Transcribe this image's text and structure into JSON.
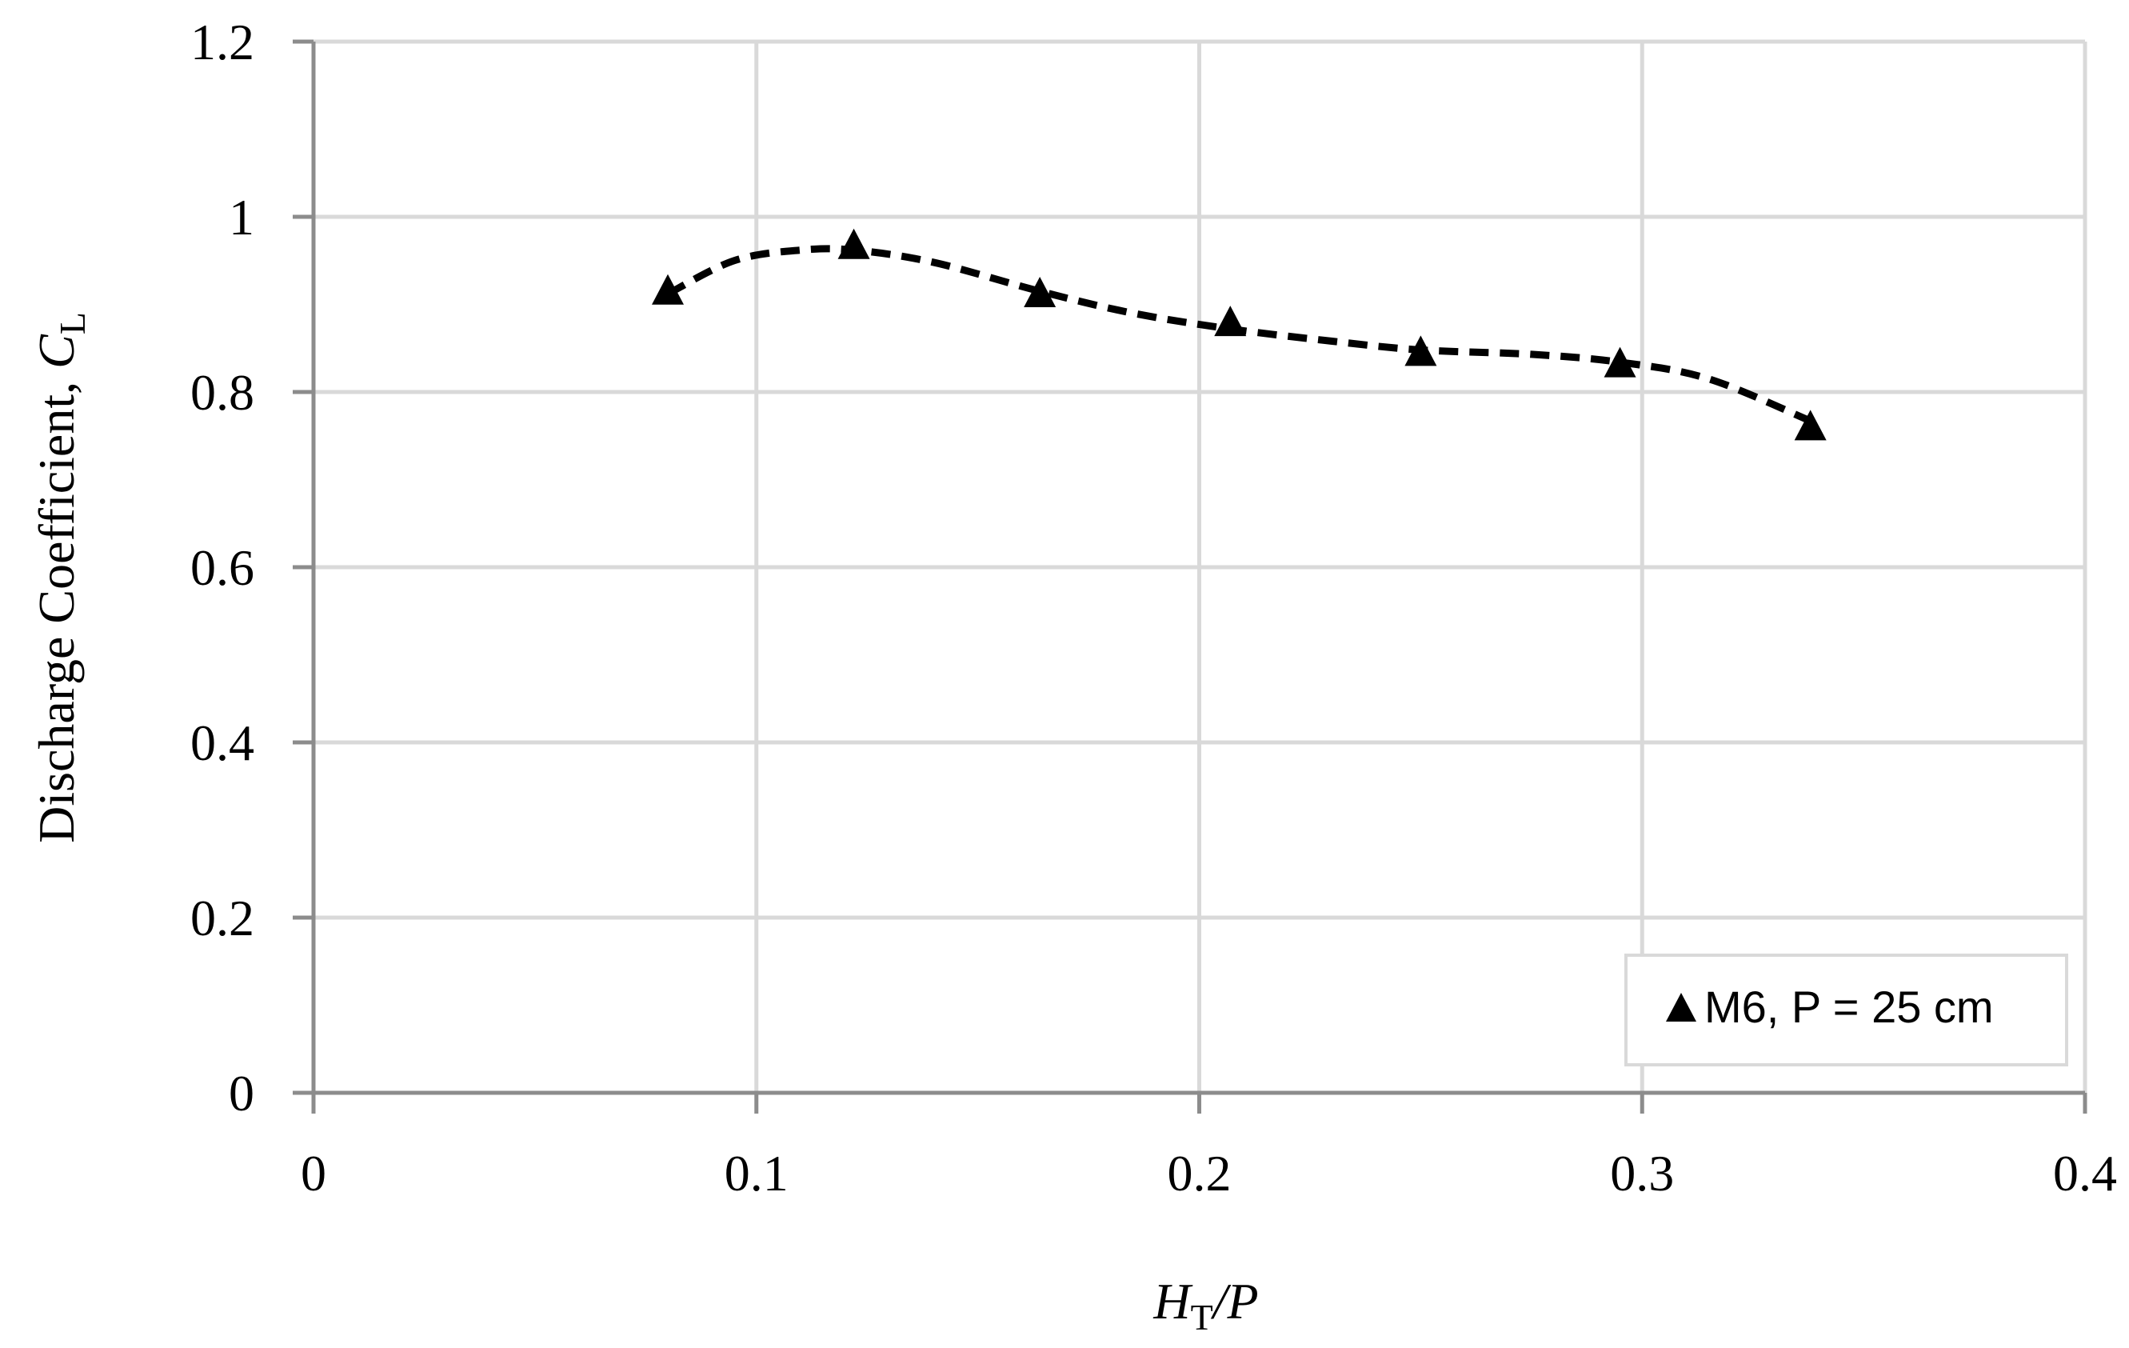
{
  "chart_data": {
    "type": "scatter",
    "xlabel_main": "H",
    "xlabel_sub": "T",
    "xlabel_rest": "/P",
    "ylabel_main": "Discharge Coefficient, ",
    "ylabel_var": "C",
    "ylabel_sub": "L",
    "xlim": [
      0,
      0.4
    ],
    "ylim": [
      0,
      1.2
    ],
    "xticks": [
      0,
      0.1,
      0.2,
      0.3,
      0.4
    ],
    "xtick_labels": [
      "0",
      "0.1",
      "0.2",
      "0.3",
      "0.4"
    ],
    "yticks": [
      0,
      0.2,
      0.4,
      0.6,
      0.8,
      1.0,
      1.2
    ],
    "ytick_labels": [
      "0",
      "0.2",
      "0.4",
      "0.6",
      "0.8",
      "1",
      "1.2"
    ],
    "grid": true,
    "legend_position": "bottom-right",
    "series": [
      {
        "name": "M6, P = 25 cm",
        "marker": "triangle",
        "color": "#000000",
        "x": [
          0.08,
          0.122,
          0.164,
          0.207,
          0.25,
          0.295,
          0.338
        ],
        "y": [
          0.913,
          0.965,
          0.91,
          0.877,
          0.843,
          0.83,
          0.758
        ]
      }
    ],
    "trendline": {
      "style": "dashed",
      "color": "#000000",
      "x": [
        0.08,
        0.095,
        0.11,
        0.122,
        0.14,
        0.164,
        0.185,
        0.207,
        0.23,
        0.25,
        0.275,
        0.295,
        0.315,
        0.338
      ],
      "y": [
        0.912,
        0.95,
        0.962,
        0.962,
        0.948,
        0.915,
        0.89,
        0.872,
        0.858,
        0.848,
        0.843,
        0.834,
        0.815,
        0.767
      ]
    }
  }
}
